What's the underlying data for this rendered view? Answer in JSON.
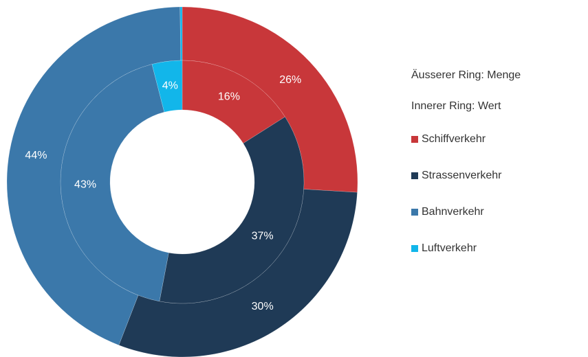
{
  "chart_data": {
    "type": "donut",
    "categories": [
      "Schiffverkehr",
      "Strassenverkehr",
      "Bahnverkehr",
      "Luftverkehr"
    ],
    "colors": [
      "#c8373a",
      "#1f3a56",
      "#3b78aa",
      "#12b6ea"
    ],
    "series": [
      {
        "name": "Äusserer Ring: Menge",
        "values": [
          26,
          30,
          44,
          0.2
        ],
        "value_labels": [
          "26%",
          "30%",
          "44%",
          null
        ]
      },
      {
        "name": "Innerer Ring: Wert",
        "values": [
          16,
          37,
          43,
          4
        ],
        "value_labels": [
          "16%",
          "37%",
          "43%",
          "4%"
        ]
      }
    ]
  }
}
